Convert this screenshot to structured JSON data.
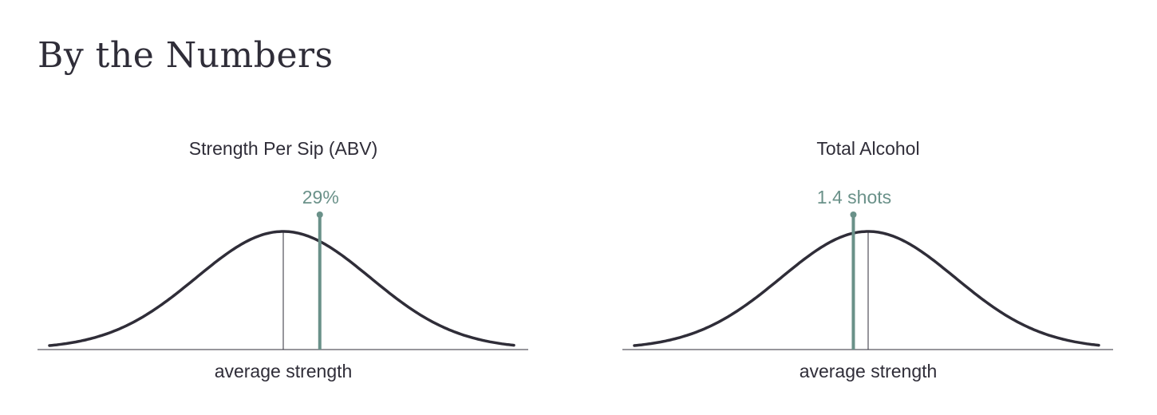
{
  "page": {
    "title": "By the Numbers"
  },
  "colors": {
    "curve": "#2f2d38",
    "marker": "#6a9189",
    "text": "#2f2d38"
  },
  "chart_data": [
    {
      "type": "line",
      "title": "Strength Per Sip (ABV)",
      "xlabel": "average strength",
      "marker_label": "29%",
      "distribution": "normal",
      "marker_offset_sd": 0.42
    },
    {
      "type": "line",
      "title": "Total Alcohol",
      "xlabel": "average strength",
      "marker_label": "1.4 shots",
      "distribution": "normal",
      "marker_offset_sd": -0.17
    }
  ]
}
